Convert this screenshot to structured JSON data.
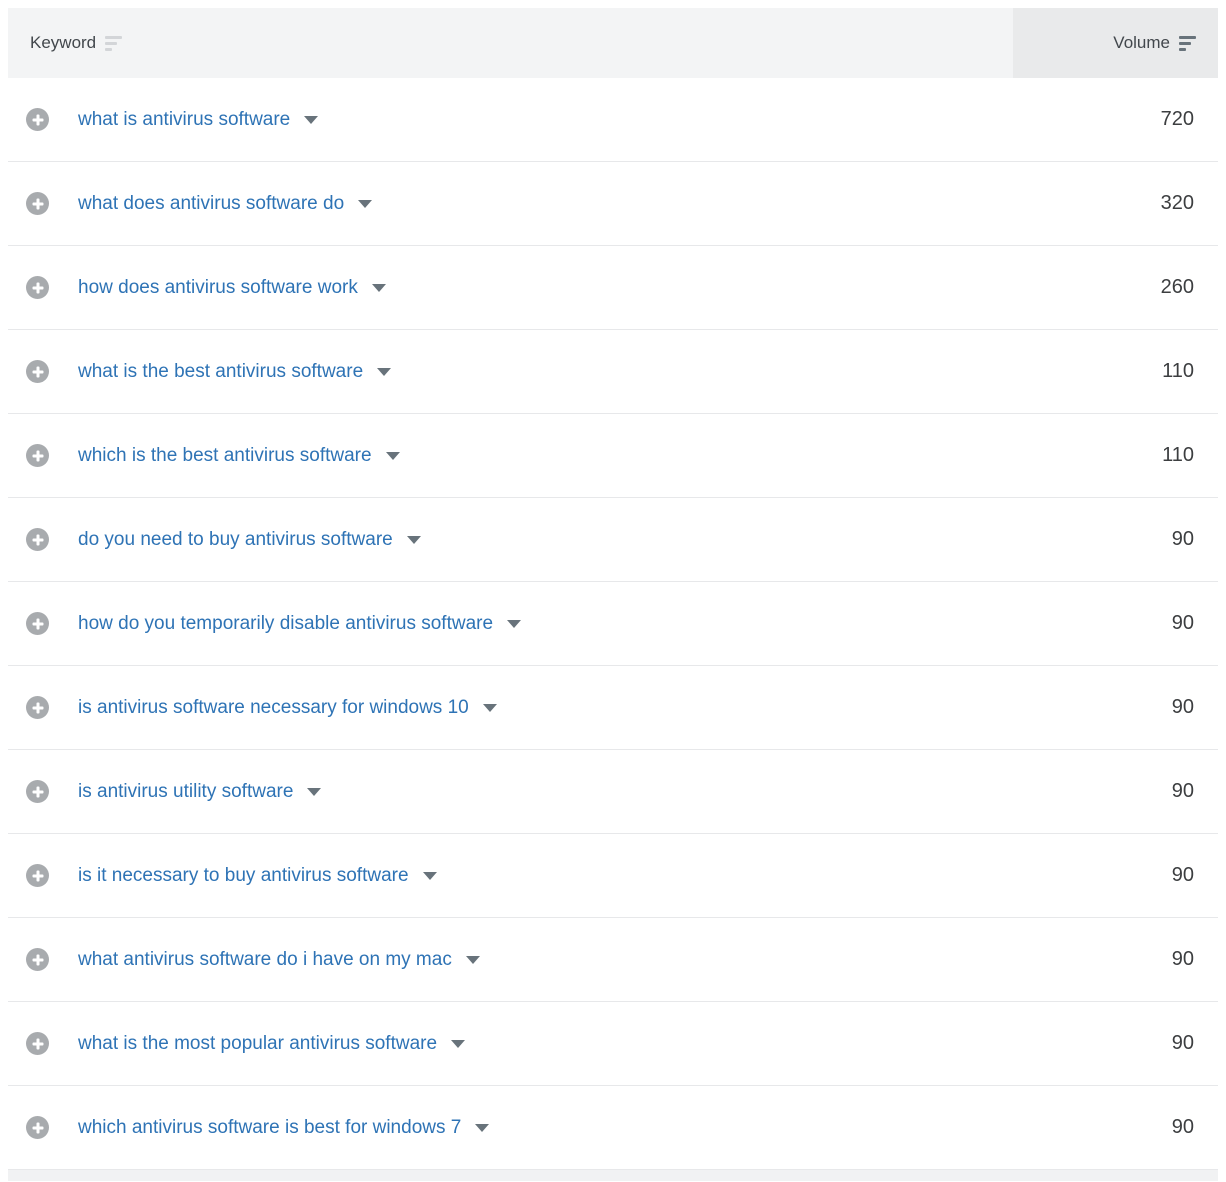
{
  "table": {
    "columns": [
      {
        "label": "Keyword",
        "sort_active": false
      },
      {
        "label": "Volume",
        "sort_active": true
      }
    ],
    "rows": [
      {
        "keyword": "what is antivirus software",
        "volume": "720"
      },
      {
        "keyword": "what does antivirus software do",
        "volume": "320"
      },
      {
        "keyword": "how does antivirus software work",
        "volume": "260"
      },
      {
        "keyword": "what is the best antivirus software",
        "volume": "110"
      },
      {
        "keyword": "which is the best antivirus software",
        "volume": "110"
      },
      {
        "keyword": "do you need to buy antivirus software",
        "volume": "90"
      },
      {
        "keyword": "how do you temporarily disable antivirus software",
        "volume": "90"
      },
      {
        "keyword": "is antivirus software necessary for windows 10",
        "volume": "90"
      },
      {
        "keyword": "is antivirus utility software",
        "volume": "90"
      },
      {
        "keyword": "is it necessary to buy antivirus software",
        "volume": "90"
      },
      {
        "keyword": "what antivirus software do i have on my mac",
        "volume": "90"
      },
      {
        "keyword": "what is the most popular antivirus software",
        "volume": "90"
      },
      {
        "keyword": "which antivirus software is best for windows 7",
        "volume": "90"
      }
    ]
  },
  "colors": {
    "link_blue": "#2e73b5",
    "header_keyword_bg": "#f3f4f5",
    "header_volume_bg": "#e9eaeb",
    "active_sort_icon": "#68737b",
    "inactive_sort_icon": "#d3d5d8",
    "plus_icon_bg": "#a8abae",
    "volume_text": "#3c3e40"
  }
}
